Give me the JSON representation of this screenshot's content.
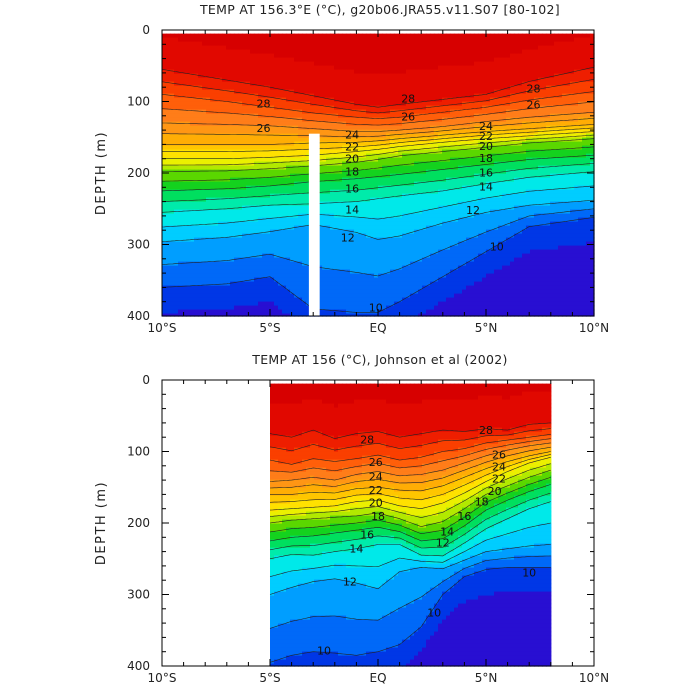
{
  "chart_data": [
    {
      "type": "heatmap",
      "subtype": "filled-contour",
      "title": "TEMP AT 156.3°E (°C), g20b06.JRA55.v11.S07 [80-102]",
      "xlabel": "",
      "ylabel": "DEPTH (m)",
      "xlim": [
        -10,
        10
      ],
      "ylim": [
        400,
        0
      ],
      "x_ticks": [
        -10,
        -5,
        0,
        5,
        10
      ],
      "x_tick_labels": [
        "10°S",
        "5°S",
        "EQ",
        "5°N",
        "10°N"
      ],
      "y_ticks": [
        0,
        100,
        200,
        300,
        400
      ],
      "y_tick_labels": [
        "0",
        "100",
        "200",
        "300",
        "400"
      ],
      "data_x_range": [
        -10,
        10
      ],
      "data_depth_range": [
        5,
        400
      ],
      "contour_levels": [
        9,
        10,
        11,
        12,
        13,
        14,
        15,
        16,
        17,
        18,
        19,
        20,
        21,
        22,
        23,
        24,
        25,
        26,
        27,
        28,
        29
      ],
      "missing_region": {
        "x": [
          -3.2,
          -2.7
        ],
        "depth": [
          145,
          400
        ]
      },
      "isotherm_depths_x": [
        -10,
        -7,
        -5,
        -3,
        -1,
        0,
        1,
        3,
        5,
        7,
        10
      ],
      "isotherm_depths": [
        {
          "temp": 28,
          "depth": [
            55,
            70,
            80,
            92,
            104,
            108,
            104,
            97,
            90,
            72,
            52
          ]
        },
        {
          "temp": 26,
          "depth": [
            90,
            100,
            108,
            116,
            122,
            124,
            122,
            115,
            108,
            98,
            86
          ]
        },
        {
          "temp": 24,
          "depth": [
            130,
            132,
            134,
            138,
            142,
            142,
            140,
            135,
            128,
            122,
            115
          ]
        },
        {
          "temp": 22,
          "depth": [
            160,
            160,
            160,
            158,
            157,
            155,
            152,
            147,
            142,
            138,
            132
          ]
        },
        {
          "temp": 20,
          "depth": [
            180,
            180,
            178,
            175,
            170,
            167,
            163,
            157,
            152,
            148,
            142
          ]
        },
        {
          "temp": 18,
          "depth": [
            198,
            197,
            194,
            190,
            185,
            181,
            176,
            170,
            164,
            158,
            152
          ]
        },
        {
          "temp": 16,
          "depth": [
            225,
            222,
            218,
            212,
            208,
            205,
            202,
            195,
            188,
            181,
            175
          ]
        },
        {
          "temp": 14,
          "depth": [
            255,
            250,
            245,
            243,
            240,
            236,
            232,
            225,
            215,
            206,
            198
          ]
        },
        {
          "temp": 12,
          "depth": [
            296,
            290,
            282,
            272,
            283,
            293,
            288,
            270,
            255,
            245,
            238
          ]
        },
        {
          "temp": 10,
          "depth": [
            360,
            355,
            345,
            390,
            395,
            395,
            380,
            345,
            310,
            275,
            262
          ]
        }
      ],
      "contour_labels": [
        {
          "text": "28",
          "x": -5.3,
          "depth": 103
        },
        {
          "text": "28",
          "x": 1.4,
          "depth": 96
        },
        {
          "text": "28",
          "x": 7.2,
          "depth": 82
        },
        {
          "text": "26",
          "x": -5.3,
          "depth": 137
        },
        {
          "text": "26",
          "x": 1.4,
          "depth": 121
        },
        {
          "text": "26",
          "x": 7.2,
          "depth": 104
        },
        {
          "text": "24",
          "x": -1.2,
          "depth": 146
        },
        {
          "text": "24",
          "x": 5.0,
          "depth": 134
        },
        {
          "text": "22",
          "x": -1.2,
          "depth": 163
        },
        {
          "text": "22",
          "x": 5.0,
          "depth": 148
        },
        {
          "text": "20",
          "x": -1.2,
          "depth": 180
        },
        {
          "text": "20",
          "x": 5.0,
          "depth": 162
        },
        {
          "text": "18",
          "x": -1.2,
          "depth": 198
        },
        {
          "text": "18",
          "x": 5.0,
          "depth": 179
        },
        {
          "text": "16",
          "x": -1.2,
          "depth": 222
        },
        {
          "text": "16",
          "x": 5.0,
          "depth": 199
        },
        {
          "text": "14",
          "x": -1.2,
          "depth": 251
        },
        {
          "text": "14",
          "x": 5.0,
          "depth": 219
        },
        {
          "text": "12",
          "x": -1.4,
          "depth": 290
        },
        {
          "text": "12",
          "x": 4.4,
          "depth": 252
        },
        {
          "text": "10",
          "x": -0.1,
          "depth": 388
        },
        {
          "text": "10",
          "x": 5.5,
          "depth": 303
        }
      ]
    },
    {
      "type": "heatmap",
      "subtype": "filled-contour",
      "title": "TEMP AT 156 (°C), Johnson et al (2002)",
      "xlabel": "",
      "ylabel": "DEPTH (m)",
      "xlim": [
        -10,
        10
      ],
      "ylim": [
        400,
        0
      ],
      "x_ticks": [
        -10,
        -5,
        0,
        5,
        10
      ],
      "x_tick_labels": [
        "10°S",
        "5°S",
        "EQ",
        "5°N",
        "10°N"
      ],
      "y_ticks": [
        0,
        100,
        200,
        300,
        400
      ],
      "y_tick_labels": [
        "0",
        "100",
        "200",
        "300",
        "400"
      ],
      "data_x_range": [
        -5,
        8
      ],
      "data_depth_range": [
        5,
        400
      ],
      "contour_levels": [
        9,
        10,
        11,
        12,
        13,
        14,
        15,
        16,
        17,
        18,
        19,
        20,
        21,
        22,
        23,
        24,
        25,
        26,
        27,
        28,
        29
      ],
      "isotherm_depths_x": [
        -5,
        -4,
        -3,
        -2,
        -1,
        0,
        1,
        2,
        3,
        4,
        5,
        6,
        7,
        8
      ],
      "isotherm_depths": [
        {
          "temp": 28,
          "depth": [
            75,
            80,
            70,
            82,
            75,
            72,
            80,
            75,
            70,
            72,
            68,
            70,
            62,
            60
          ]
        },
        {
          "temp": 26,
          "depth": [
            112,
            118,
            110,
            114,
            110,
            105,
            112,
            108,
            100,
            96,
            88,
            84,
            80,
            76
          ]
        },
        {
          "temp": 24,
          "depth": [
            142,
            140,
            136,
            140,
            132,
            128,
            134,
            132,
            126,
            116,
            106,
            98,
            92,
            88
          ]
        },
        {
          "temp": 22,
          "depth": [
            160,
            160,
            157,
            158,
            152,
            150,
            154,
            155,
            148,
            136,
            124,
            114,
            106,
            100
          ]
        },
        {
          "temp": 20,
          "depth": [
            182,
            180,
            178,
            176,
            170,
            168,
            176,
            180,
            172,
            158,
            142,
            128,
            116,
            108
          ]
        },
        {
          "temp": 18,
          "depth": [
            200,
            196,
            194,
            192,
            190,
            186,
            194,
            205,
            198,
            180,
            160,
            148,
            136,
            126
          ]
        },
        {
          "temp": 16,
          "depth": [
            225,
            220,
            218,
            214,
            210,
            206,
            212,
            225,
            222,
            204,
            182,
            168,
            156,
            146
          ]
        },
        {
          "temp": 14,
          "depth": [
            250,
            244,
            245,
            240,
            236,
            230,
            230,
            245,
            246,
            228,
            208,
            194,
            180,
            170
          ]
        },
        {
          "temp": 12,
          "depth": [
            300,
            290,
            282,
            278,
            284,
            292,
            268,
            262,
            264,
            252,
            240,
            236,
            232,
            230
          ]
        },
        {
          "temp": 10,
          "depth": [
            395,
            385,
            380,
            382,
            385,
            380,
            370,
            345,
            300,
            275,
            265,
            262,
            262,
            262
          ]
        }
      ],
      "contour_labels": [
        {
          "text": "28",
          "x": -0.5,
          "depth": 83
        },
        {
          "text": "28",
          "x": 5.0,
          "depth": 70
        },
        {
          "text": "26",
          "x": -0.1,
          "depth": 115
        },
        {
          "text": "26",
          "x": 5.6,
          "depth": 104
        },
        {
          "text": "24",
          "x": -0.1,
          "depth": 135
        },
        {
          "text": "24",
          "x": 5.6,
          "depth": 121
        },
        {
          "text": "22",
          "x": -0.1,
          "depth": 154
        },
        {
          "text": "22",
          "x": 5.6,
          "depth": 138
        },
        {
          "text": "20",
          "x": -0.1,
          "depth": 171
        },
        {
          "text": "20",
          "x": 5.4,
          "depth": 155
        },
        {
          "text": "18",
          "x": 0.0,
          "depth": 190
        },
        {
          "text": "18",
          "x": 4.8,
          "depth": 170
        },
        {
          "text": "16",
          "x": 4.0,
          "depth": 190
        },
        {
          "text": "16",
          "x": -0.5,
          "depth": 216
        },
        {
          "text": "14",
          "x": -1.0,
          "depth": 236
        },
        {
          "text": "14",
          "x": 3.2,
          "depth": 212
        },
        {
          "text": "12",
          "x": 3.0,
          "depth": 227
        },
        {
          "text": "12",
          "x": -1.3,
          "depth": 282
        },
        {
          "text": "10",
          "x": 2.6,
          "depth": 325
        },
        {
          "text": "10",
          "x": -2.5,
          "depth": 378
        },
        {
          "text": "10",
          "x": 7.0,
          "depth": 269
        }
      ]
    }
  ]
}
